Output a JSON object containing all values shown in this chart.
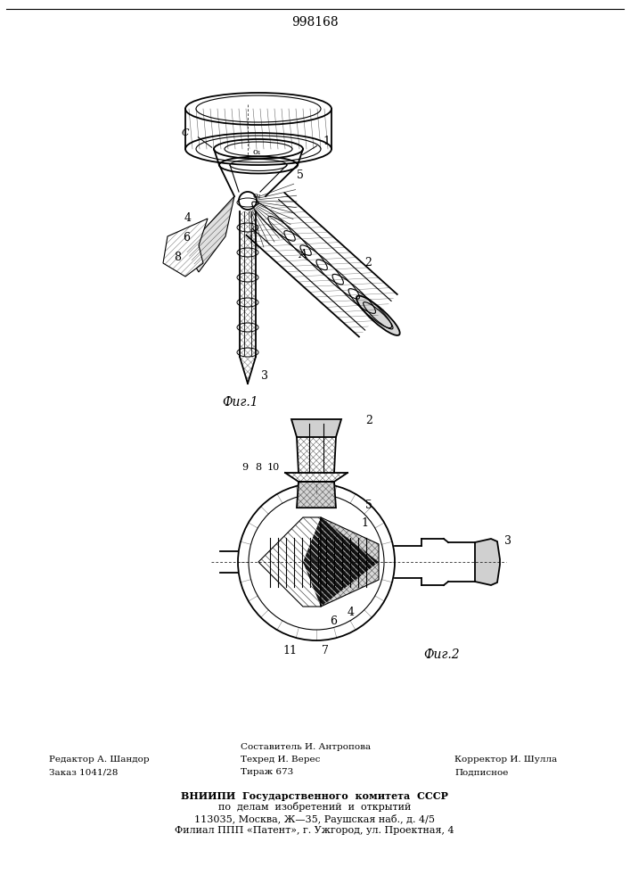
{
  "patent_number": "998168",
  "fig1_caption": "Фиг.1",
  "fig2_caption": "Фиг.2",
  "bottom_left1": "Редактор А. Шандор",
  "bottom_left2": "Заказ 1041/28",
  "bottom_mid0": "Составитель И. Антропова",
  "bottom_mid1": "Техред И. Верес",
  "bottom_mid2": "Тираж 673",
  "bottom_right1": "Корректор И. Шулла",
  "bottom_right2": "Подписное",
  "vnipi1": "ВНИИПИ  Государственного  комитета  СССР",
  "vnipi2": "по  делам  изобретений  и  открытий",
  "vnipi3": "113035, Москва, Ж—35, Раушская наб., д. 4/5",
  "vnipi4": "Филиал ППП «Патент», г. Ужгород, ул. Проектная, 4"
}
